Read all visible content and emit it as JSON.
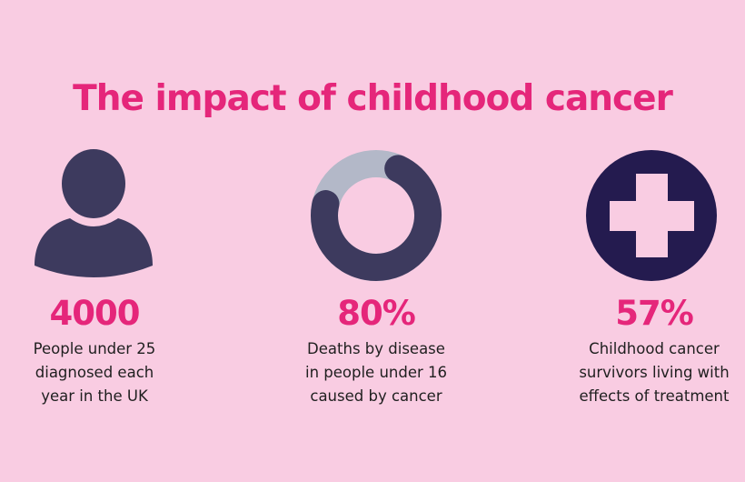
{
  "title": "The impact of childhood cancer",
  "colors": {
    "background": "#f9cce2",
    "accent": "#e5267a",
    "icon_dark": "#3d3a5e",
    "donut_track": "#b3b8c8",
    "cross_circle": "#241b4f"
  },
  "stats": [
    {
      "icon": "person-icon",
      "value": "4000",
      "description": [
        "People under 25",
        "diagnosed each",
        "year in the UK"
      ]
    },
    {
      "icon": "donut-chart-icon",
      "value": "80%",
      "percent": 80,
      "description": [
        "Deaths by disease",
        "in people under 16",
        "caused by cancer"
      ]
    },
    {
      "icon": "medical-cross-icon",
      "value": "57%",
      "description": [
        "Childhood cancer",
        "survivors living with",
        "effects of treatment"
      ]
    }
  ]
}
